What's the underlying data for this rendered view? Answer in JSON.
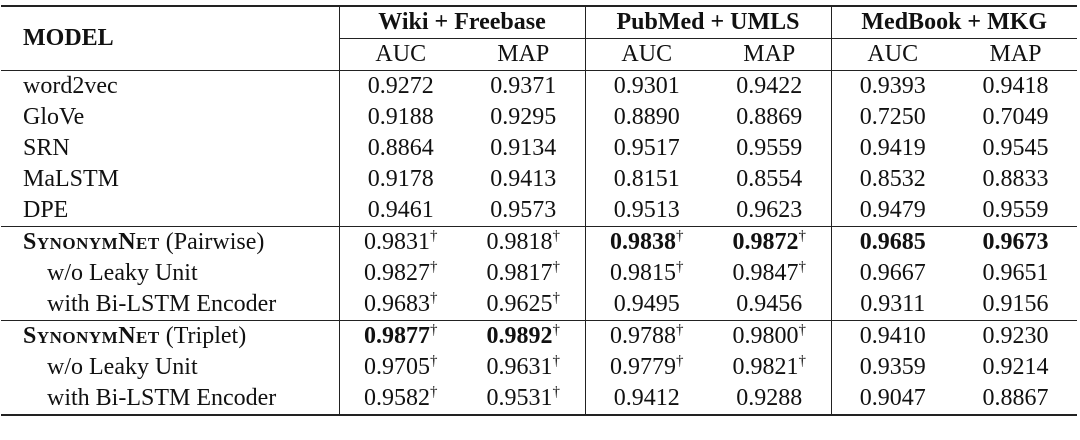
{
  "header": {
    "model": "MODEL",
    "datasets": [
      {
        "name": "Wiki + Freebase",
        "metrics": [
          "AUC",
          "MAP"
        ]
      },
      {
        "name": "PubMed + UMLS",
        "metrics": [
          "AUC",
          "MAP"
        ]
      },
      {
        "name": "MedBook + MKG",
        "metrics": [
          "AUC",
          "MAP"
        ]
      }
    ]
  },
  "groups": [
    {
      "rows": [
        {
          "model": "word2vec",
          "cells": [
            "0.9272",
            "0.9371",
            "0.9301",
            "0.9422",
            "0.9393",
            "0.9418"
          ]
        },
        {
          "model": "GloVe",
          "cells": [
            "0.9188",
            "0.9295",
            "0.8890",
            "0.8869",
            "0.7250",
            "0.7049"
          ]
        },
        {
          "model": "SRN",
          "cells": [
            "0.8864",
            "0.9134",
            "0.9517",
            "0.9559",
            "0.9419",
            "0.9545"
          ]
        },
        {
          "model": "MaLSTM",
          "cells": [
            "0.9178",
            "0.9413",
            "0.8151",
            "0.8554",
            "0.8532",
            "0.8833"
          ]
        },
        {
          "model": "DPE",
          "cells": [
            "0.9461",
            "0.9573",
            "0.9513",
            "0.9623",
            "0.9479",
            "0.9559"
          ]
        }
      ]
    },
    {
      "rows": [
        {
          "model": {
            "name": "SynonymNet",
            "suffix": "(Pairwise)"
          },
          "cells": [
            {
              "value": "0.9831",
              "note": "†"
            },
            {
              "value": "0.9818",
              "note": "†"
            },
            {
              "value": "0.9838",
              "note": "†",
              "bold": true
            },
            {
              "value": "0.9872",
              "note": "†",
              "bold": true
            },
            {
              "value": "0.9685",
              "bold": true
            },
            {
              "value": "0.9673",
              "bold": true
            }
          ]
        },
        {
          "model": "w/o Leaky Unit",
          "cells": [
            {
              "value": "0.9827",
              "note": "†"
            },
            {
              "value": "0.9817",
              "note": "†"
            },
            {
              "value": "0.9815",
              "note": "†"
            },
            {
              "value": "0.9847",
              "note": "†"
            },
            "0.9667",
            "0.9651"
          ]
        },
        {
          "model": "with Bi-LSTM Encoder",
          "cells": [
            {
              "value": "0.9683",
              "note": "†"
            },
            {
              "value": "0.9625",
              "note": "†"
            },
            "0.9495",
            "0.9456",
            "0.9311",
            "0.9156"
          ]
        }
      ]
    },
    {
      "rows": [
        {
          "model": {
            "name": "SynonymNet",
            "suffix": "(Triplet)"
          },
          "cells": [
            {
              "value": "0.9877",
              "note": "†",
              "bold": true
            },
            {
              "value": "0.9892",
              "note": "†",
              "bold": true
            },
            {
              "value": "0.9788",
              "note": "†"
            },
            {
              "value": "0.9800",
              "note": "†"
            },
            "0.9410",
            "0.9230"
          ]
        },
        {
          "model": "w/o Leaky Unit",
          "cells": [
            {
              "value": "0.9705",
              "note": "†"
            },
            {
              "value": "0.9631",
              "note": "†"
            },
            {
              "value": "0.9779",
              "note": "†"
            },
            {
              "value": "0.9821",
              "note": "†"
            },
            "0.9359",
            "0.9214"
          ]
        },
        {
          "model": "with Bi-LSTM Encoder",
          "cells": [
            {
              "value": "0.9582",
              "note": "†"
            },
            {
              "value": "0.9531",
              "note": "†"
            },
            "0.9412",
            "0.9288",
            "0.9047",
            "0.8867"
          ]
        }
      ]
    }
  ]
}
